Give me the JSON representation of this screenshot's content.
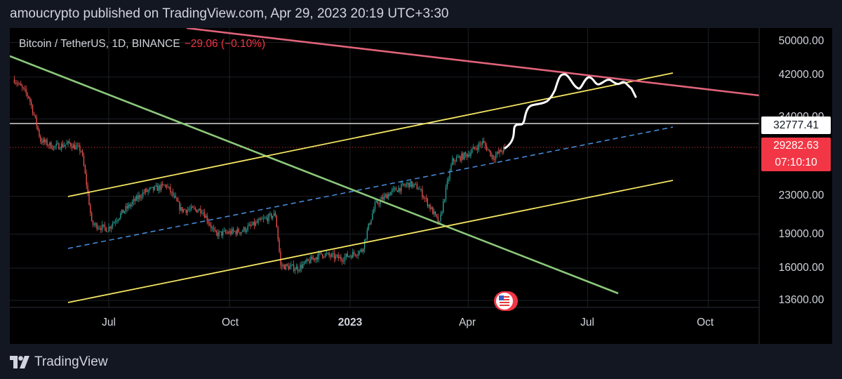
{
  "header": {
    "text": "amoucrypto published on TradingView.com, Apr 29, 2023 20:19 UTC+3:30"
  },
  "legend": {
    "symbol": "Bitcoin / TetherUS, 1D, BINANCE",
    "change": "−29.06 (−0.10%)"
  },
  "price_scale": [
    "50000.00",
    "42000.00",
    "34000.00",
    "23000.00",
    "19000.00",
    "16000.00",
    "13600.00"
  ],
  "price_tags": {
    "level": "32777.41",
    "last_price": "29282.63",
    "countdown": "07:10:10"
  },
  "time_scale": [
    "Jul",
    "Oct",
    "2023",
    "Apr",
    "Jul",
    "Oct"
  ],
  "footer": {
    "brand": "TradingView"
  },
  "colors": {
    "background": "#000000",
    "up": "#26a69a",
    "down": "#ef5350",
    "resistance_line": "#e0637a",
    "channel_lines": "#f5e663",
    "midline": "#4a90e2",
    "downtrend_line": "#8bc87a",
    "projection": "#ffffff"
  },
  "chart_data": {
    "type": "candlestick",
    "symbol": "BTCUSDT",
    "interval": "1D",
    "exchange": "BINANCE",
    "last_price": 29282.63,
    "change": -29.06,
    "change_pct": -0.1,
    "price_levels": [
      50000,
      42000,
      34000,
      23000,
      19000,
      16000,
      13600
    ],
    "horizontal_level": 32777.41,
    "time_ticks": [
      "Jul",
      "Oct",
      "2023",
      "Apr",
      "Jul",
      "Oct"
    ],
    "close_path": [
      [
        "2022-04-20",
        41500
      ],
      [
        "2022-05-01",
        38000
      ],
      [
        "2022-05-10",
        30500
      ],
      [
        "2022-05-20",
        29500
      ],
      [
        "2022-06-01",
        30000
      ],
      [
        "2022-06-10",
        29000
      ],
      [
        "2022-06-18",
        20000
      ],
      [
        "2022-06-30",
        19500
      ],
      [
        "2022-07-10",
        21000
      ],
      [
        "2022-07-28",
        23500
      ],
      [
        "2022-08-14",
        24300
      ],
      [
        "2022-08-25",
        21500
      ],
      [
        "2022-09-10",
        21500
      ],
      [
        "2022-09-20",
        19000
      ],
      [
        "2022-10-10",
        19300
      ],
      [
        "2022-10-25",
        20300
      ],
      [
        "2022-11-05",
        21000
      ],
      [
        "2022-11-09",
        16200
      ],
      [
        "2022-11-22",
        16000
      ],
      [
        "2022-12-10",
        17200
      ],
      [
        "2022-12-25",
        16800
      ],
      [
        "2023-01-10",
        17500
      ],
      [
        "2023-01-20",
        22000
      ],
      [
        "2023-02-01",
        23500
      ],
      [
        "2023-02-15",
        24500
      ],
      [
        "2023-02-22",
        24000
      ],
      [
        "2023-03-10",
        20000
      ],
      [
        "2023-03-20",
        27500
      ],
      [
        "2023-04-01",
        28500
      ],
      [
        "2023-04-12",
        30200
      ],
      [
        "2023-04-20",
        28000
      ],
      [
        "2023-04-29",
        29282.63
      ]
    ]
  }
}
